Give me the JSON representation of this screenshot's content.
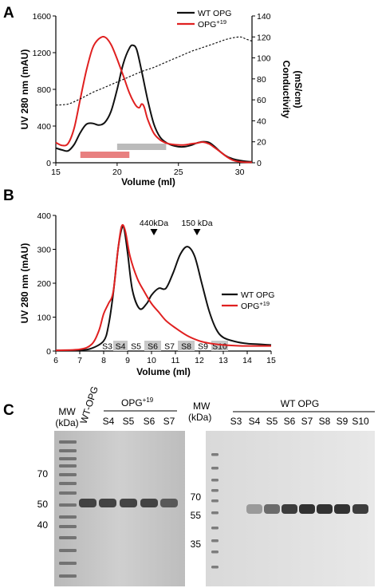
{
  "panels": {
    "a": {
      "letter": "A",
      "chart_data": {
        "type": "line",
        "xlabel": "Volume (ml)",
        "ylabel_left": "UV 280 nm (mAU)",
        "ylabel_right_line1": "Conductivity",
        "ylabel_right_line2": "(mS/cm)",
        "xlim": [
          15,
          31
        ],
        "ylim_left": [
          0,
          1600
        ],
        "ylim_right": [
          0,
          140
        ],
        "x_ticks": [
          "15",
          "20",
          "25",
          "30"
        ],
        "y_ticks_left": [
          "0",
          "400",
          "800",
          "1200",
          "1600"
        ],
        "y_ticks_right": [
          "0",
          "20",
          "40",
          "60",
          "80",
          "100",
          "120",
          "140"
        ],
        "legend": [
          "WT OPG",
          "OPG+19"
        ],
        "legend_placement": "top-right",
        "colors": {
          "wt": "#111111",
          "opg19": "#e02020",
          "conductivity": "#111111",
          "bar_red": "#e88080",
          "bar_grey": "#bbbbbb"
        },
        "series": [
          {
            "name": "WT OPG",
            "x": [
              15,
              15.5,
              16,
              16.5,
              17,
              17.5,
              18,
              18.5,
              19,
              19.5,
              20,
              20.5,
              21,
              21.3,
              21.6,
              22,
              22.5,
              23,
              23.5,
              24,
              24.5,
              25,
              25.5,
              26,
              26.5,
              27,
              27.5,
              28,
              28.5,
              29,
              29.5,
              30,
              30.5,
              31
            ],
            "y": [
              160,
              140,
              130,
              200,
              330,
              420,
              430,
              410,
              440,
              560,
              800,
              1080,
              1250,
              1280,
              1230,
              1000,
              680,
              420,
              280,
              220,
              190,
              175,
              175,
              190,
              215,
              230,
              220,
              170,
              110,
              65,
              40,
              25,
              15,
              10
            ]
          },
          {
            "name": "OPG+19",
            "x": [
              15,
              15.5,
              16,
              16.5,
              17,
              17.5,
              18,
              18.5,
              19,
              19.5,
              20,
              20.5,
              21,
              21.5,
              21.8,
              22,
              22.2,
              22.5,
              23,
              23.5,
              24,
              24.5,
              25,
              25.5,
              26,
              26.5,
              27,
              27.5,
              28,
              28.5,
              29,
              29.5,
              30,
              30.5,
              31
            ],
            "y": [
              220,
              190,
              210,
              380,
              700,
              1010,
              1250,
              1350,
              1370,
              1290,
              1130,
              950,
              760,
              630,
              600,
              640,
              610,
              470,
              320,
              250,
              215,
              200,
              195,
              195,
              205,
              215,
              225,
              205,
              160,
              110,
              60,
              25,
              10,
              5,
              5
            ]
          },
          {
            "name": "Conductivity",
            "axis": "right",
            "x": [
              15,
              16,
              17,
              18,
              19,
              20,
              21,
              22,
              23,
              24,
              25,
              26,
              27,
              28,
              29,
              30,
              30.5,
              31
            ],
            "y": [
              55,
              56,
              61,
              67,
              72,
              77,
              82,
              87,
              91,
              96,
              101,
              106,
              110,
              114,
              118,
              120,
              118,
              116
            ]
          }
        ],
        "fraction_bars": [
          {
            "series": "OPG+19",
            "x_range": [
              17,
              21
            ]
          },
          {
            "series": "WT OPG",
            "x_range": [
              20,
              24
            ]
          }
        ]
      }
    },
    "b": {
      "letter": "B",
      "chart_data": {
        "type": "line",
        "xlabel": "Volume (ml)",
        "ylabel": "UV 280 nm (mAU)",
        "xlim": [
          6,
          15
        ],
        "ylim": [
          0,
          400
        ],
        "x_ticks": [
          "6",
          "7",
          "8",
          "9",
          "10",
          "11",
          "12",
          "13",
          "14",
          "15"
        ],
        "y_ticks": [
          "0",
          "100",
          "200",
          "300",
          "400"
        ],
        "legend": [
          "WT OPG",
          "OPG+19"
        ],
        "legend_placement": "center-right",
        "markers": [
          {
            "label": "440kDa",
            "x": 10.1
          },
          {
            "label": "150 kDa",
            "x": 11.9
          }
        ],
        "fractions": [
          {
            "label": "S3",
            "x_range": [
              7.9,
              8.4
            ],
            "shaded": false
          },
          {
            "label": "S4",
            "x_range": [
              8.4,
              9.0
            ],
            "shaded": true
          },
          {
            "label": "S5",
            "x_range": [
              9.0,
              9.7
            ],
            "shaded": false
          },
          {
            "label": "S6",
            "x_range": [
              9.7,
              10.4
            ],
            "shaded": true
          },
          {
            "label": "S7",
            "x_range": [
              10.4,
              11.1
            ],
            "shaded": false
          },
          {
            "label": "S8",
            "x_range": [
              11.1,
              11.8
            ],
            "shaded": true
          },
          {
            "label": "S9",
            "x_range": [
              11.8,
              12.5
            ],
            "shaded": false
          },
          {
            "label": "S10",
            "x_range": [
              12.5,
              13.2
            ],
            "shaded": true
          }
        ],
        "series": [
          {
            "name": "WT OPG",
            "x": [
              6,
              7,
              7.5,
              8,
              8.2,
              8.4,
              8.6,
              8.75,
              8.85,
              9,
              9.2,
              9.5,
              9.8,
              10,
              10.3,
              10.6,
              10.9,
              11.2,
              11.5,
              11.8,
              12.1,
              12.4,
              12.7,
              13,
              13.5,
              14,
              14.5,
              15
            ],
            "y": [
              2,
              3,
              8,
              30,
              75,
              170,
              300,
              360,
              362,
              290,
              180,
              125,
              140,
              165,
              185,
              185,
              230,
              285,
              308,
              280,
              200,
              120,
              65,
              40,
              28,
              22,
              20,
              18
            ]
          },
          {
            "name": "OPG+19",
            "x": [
              6,
              7,
              7.5,
              7.8,
              8,
              8.2,
              8.4,
              8.6,
              8.75,
              8.9,
              9.1,
              9.4,
              9.7,
              10,
              10.3,
              10.6,
              11,
              11.5,
              12,
              12.5,
              13,
              13.5,
              14,
              15
            ],
            "y": [
              2,
              5,
              20,
              60,
              110,
              140,
              175,
              300,
              368,
              355,
              280,
              215,
              175,
              140,
              115,
              90,
              68,
              45,
              30,
              22,
              18,
              16,
              15,
              15
            ]
          }
        ]
      }
    },
    "c": {
      "letter": "C",
      "gel_left": {
        "mw_label": "MW",
        "mw_unit": "(kDa)",
        "lane_header": "WT-OPG",
        "group_label": "OPG+19",
        "lanes": [
          "S4",
          "S5",
          "S6",
          "S7"
        ],
        "markers": [
          "70",
          "50",
          "40"
        ]
      },
      "gel_right": {
        "mw_label": "MW",
        "mw_unit": "(kDa)",
        "group_label": "WT OPG",
        "lanes": [
          "S3",
          "S4",
          "S5",
          "S6",
          "S7",
          "S8",
          "S9",
          "S10"
        ],
        "markers": [
          "70",
          "55",
          "35"
        ]
      }
    }
  }
}
